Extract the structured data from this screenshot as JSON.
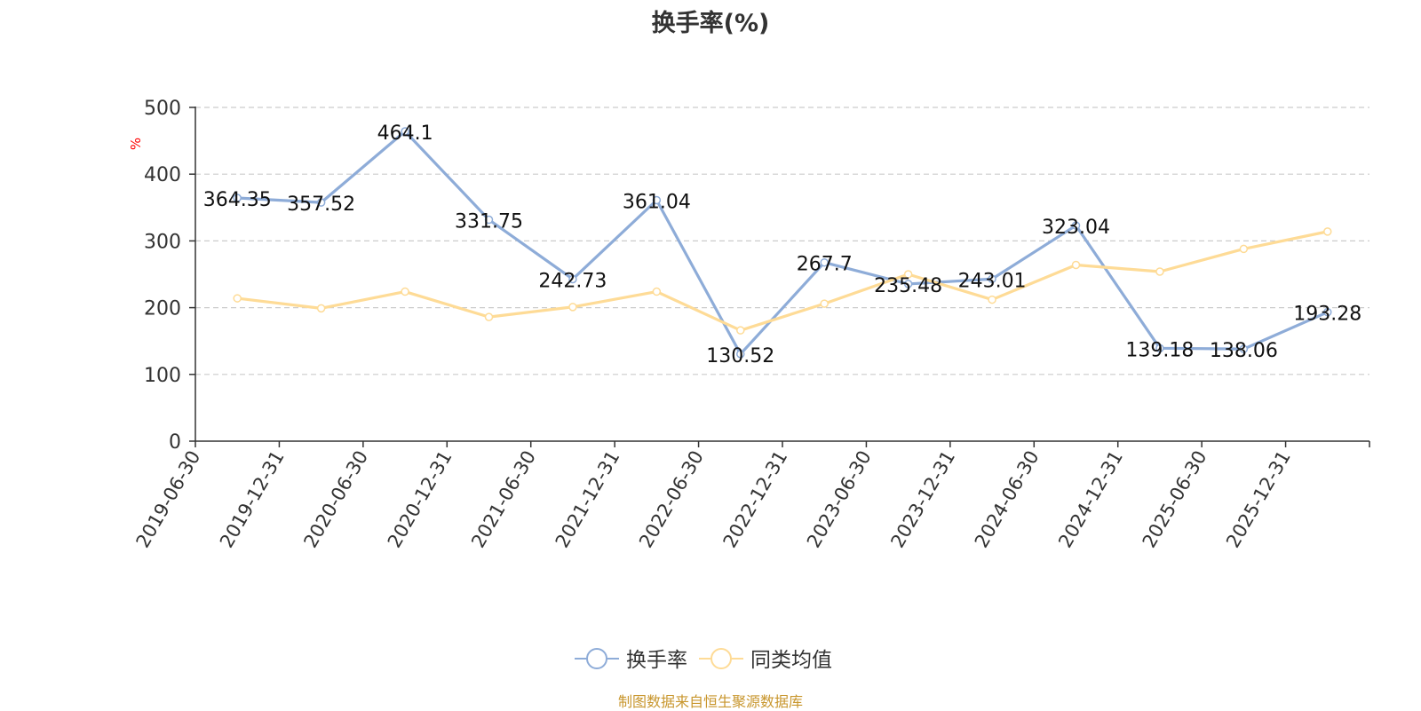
{
  "title": "换手率(%)",
  "source_text": "制图数据来自恒生聚源数据库",
  "colors": {
    "series_main": "#8eacd8",
    "series_avg": "#fedb96",
    "unit_label": "#ff0000",
    "source_text": "#c8962d",
    "grid": "#cccccc",
    "axis": "#333333",
    "text": "#333333"
  },
  "chart_data": {
    "type": "line",
    "title": "换手率(%)",
    "ylabel": "%",
    "ylim": [
      0,
      500
    ],
    "yticks": [
      0,
      100,
      200,
      300,
      400,
      500
    ],
    "grid": true,
    "legend_position": "bottom-center",
    "categories": [
      "2019-06-30",
      "2019-12-31",
      "2020-06-30",
      "2020-12-31",
      "2021-06-30",
      "2021-12-31",
      "2022-06-30",
      "2022-12-31",
      "2023-06-30",
      "2023-12-31",
      "2024-06-30",
      "2024-12-31",
      "2025-06-30",
      "2025-12-31"
    ],
    "series": [
      {
        "name": "换手率",
        "color": "#8eacd8",
        "values": [
          364.35,
          357.52,
          464.1,
          331.75,
          242.73,
          361.04,
          130.52,
          267.7,
          235.48,
          243.01,
          323.04,
          139.18,
          138.06,
          193.28
        ],
        "data_labels": [
          "364.35",
          "357.52",
          "464.1",
          "331.75",
          "242.73",
          "361.04",
          "130.52",
          "267.7",
          "235.48",
          "243.01",
          "323.04",
          "139.18",
          "138.06",
          "193.28"
        ]
      },
      {
        "name": "同类均值",
        "color": "#fedb96",
        "values": [
          214,
          199,
          224,
          186,
          201,
          224,
          166,
          206,
          250,
          212,
          264,
          254,
          288,
          314
        ]
      }
    ]
  }
}
